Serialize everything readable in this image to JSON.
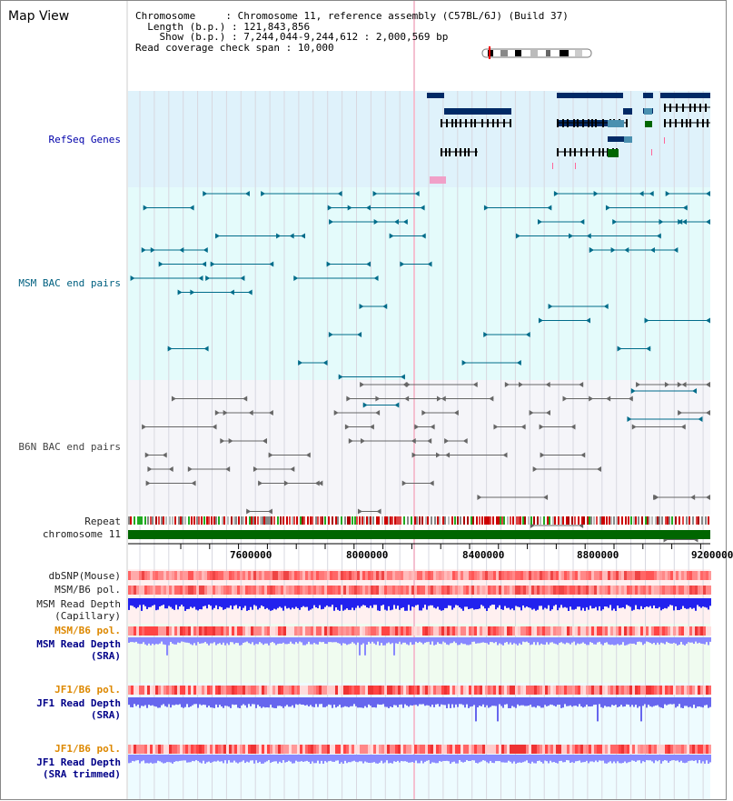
{
  "title": "Map View",
  "info": {
    "chromosome_label": "Chromosome",
    "chromosome_value": "Chromosome 11, reference assembly (C57BL/6J) (Build 37)",
    "length_label": "Length (b.p.)",
    "length_value": "121,843,856",
    "show_label": "Show (b.p.)",
    "show_value": "7,244,044-9,244,612 : 2,000,569 bp",
    "coverage_label": "Read coverage check span",
    "coverage_value": "10,000"
  },
  "tracks": {
    "refseq": "RefSeq Genes",
    "msm_bac": "MSM BAC end pairs",
    "b6n_bac": "B6N BAC end pairs",
    "repeat": "Repeat",
    "chromosome": "chromosome 11",
    "dbsnp": "dbSNP(Mouse)",
    "msm_b6_pol_1": "MSM/B6 pol.",
    "msm_depth_cap": "MSM Read Depth",
    "msm_depth_cap_sub": "(Capillary)",
    "msm_b6_pol_2": "MSM/B6 pol.",
    "msm_depth_sra": "MSM Read Depth",
    "msm_depth_sra_sub": "(SRA)",
    "jf1_b6_pol_1": "JF1/B6 pol.",
    "jf1_depth_sra": "JF1 Read Depth",
    "jf1_depth_sra_sub": "(SRA)",
    "jf1_b6_pol_2": "JF1/B6 pol.",
    "jf1_depth_trim": "JF1 Read Depth",
    "jf1_depth_trim_sub": "(SRA trimmed)"
  },
  "axis": {
    "ticks": [
      "7600000",
      "8000000",
      "8400000",
      "8800000",
      "9200000"
    ]
  },
  "colors": {
    "refseq_bg": "#dff2fb",
    "msm_bg": "#e4fbfb",
    "b6n_bg": "#f5f5f9",
    "gene_dark": "#002a66",
    "msm_line": "#006c8a",
    "b6n_line": "#666666",
    "chrom_green": "#006600",
    "depth_blue": "#2222ee",
    "depth_light": "#8888ff"
  }
}
